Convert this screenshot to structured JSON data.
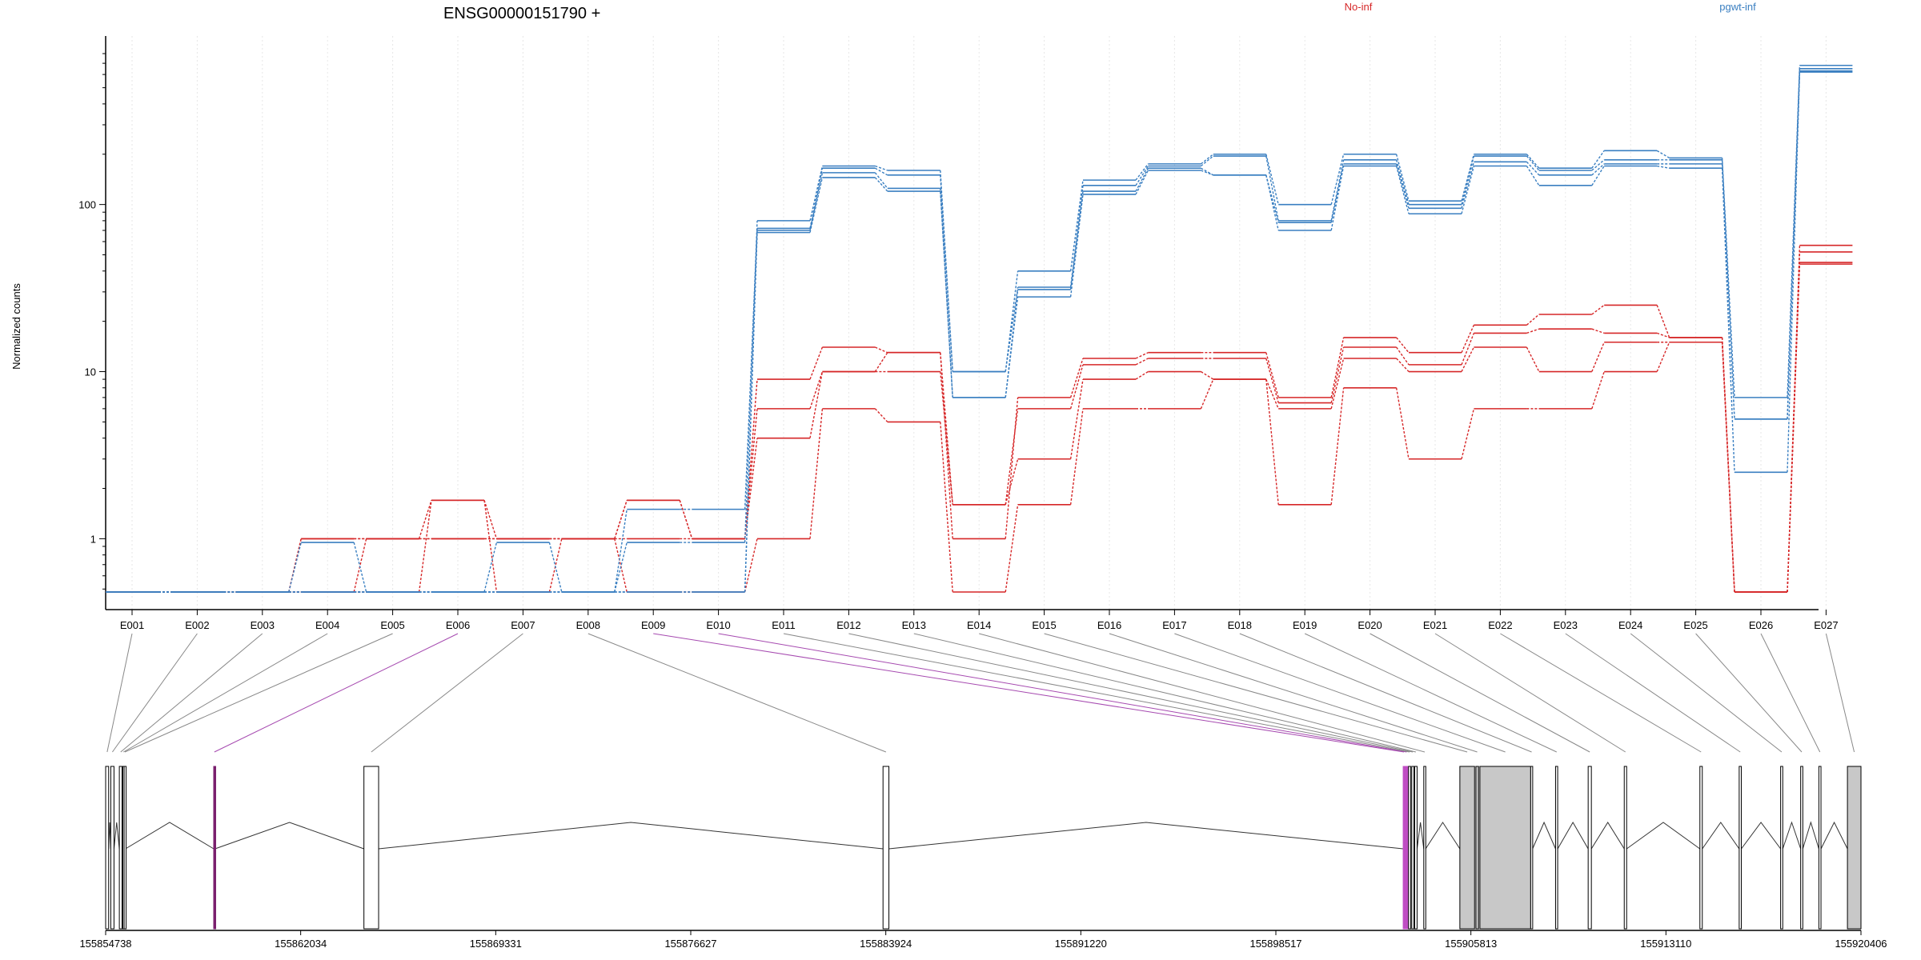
{
  "chart_data": {
    "type": "line",
    "title": "ENSG00000151790 +",
    "ylabel": "Normalized counts",
    "xlabel": "",
    "yscale": "log",
    "ylim": [
      0.48,
      800
    ],
    "yticks": [
      1,
      10,
      100
    ],
    "yticklabels": [
      "1",
      "10",
      "100"
    ],
    "grid": true,
    "legend_placement": "top",
    "legend": [
      {
        "name": "No-inf",
        "color": "#d62728"
      },
      {
        "name": "pgwt-inf",
        "color": "#3a7fc1"
      }
    ],
    "categories": [
      "E001",
      "E002",
      "E003",
      "E004",
      "E005",
      "E006",
      "E007",
      "E008",
      "E009",
      "E010",
      "E011",
      "E012",
      "E013",
      "E014",
      "E015",
      "E016",
      "E017",
      "E018",
      "E019",
      "E020",
      "E021",
      "E022",
      "E023",
      "E024",
      "E025",
      "E026",
      "E027"
    ],
    "series": [
      {
        "group": "No-inf",
        "color": "#d62728",
        "values": [
          0.48,
          0.48,
          0.48,
          1.0,
          1.0,
          1.0,
          1.0,
          1.0,
          1.0,
          1.0,
          9.0,
          14.0,
          13.0,
          1.0,
          7.0,
          12.0,
          13.0,
          13.0,
          7.0,
          16.0,
          13.0,
          19.0,
          22.0,
          25.0,
          16.0,
          0.48,
          57
        ]
      },
      {
        "group": "No-inf",
        "color": "#d62728",
        "values": [
          0.48,
          0.48,
          0.48,
          1.0,
          1.0,
          1.0,
          1.0,
          1.0,
          1.7,
          1.0,
          6.0,
          10.0,
          13.0,
          1.6,
          6.0,
          11.0,
          12.0,
          12.0,
          6.5,
          14.0,
          11.0,
          17.0,
          18.0,
          17.0,
          16.0,
          0.48,
          52
        ]
      },
      {
        "group": "No-inf",
        "color": "#d62728",
        "values": [
          0.48,
          0.48,
          0.48,
          0.48,
          1.0,
          1.7,
          1.0,
          1.0,
          1.7,
          1.0,
          4.0,
          10.0,
          10.0,
          1.6,
          3.0,
          9.0,
          10.0,
          9.0,
          6.0,
          12.0,
          10.0,
          14.0,
          10.0,
          15.0,
          15.0,
          0.48,
          45
        ]
      },
      {
        "group": "No-inf",
        "color": "#d62728",
        "values": [
          0.48,
          0.48,
          0.48,
          0.48,
          0.48,
          1.7,
          0.48,
          1.0,
          0.48,
          0.48,
          1.0,
          6.0,
          5.0,
          0.48,
          1.6,
          6.0,
          6.0,
          9.0,
          1.6,
          8.0,
          3.0,
          6.0,
          6.0,
          10.0,
          15.0,
          0.48,
          44
        ]
      },
      {
        "group": "pgwt-inf",
        "color": "#3a7fc1",
        "values": [
          0.48,
          0.48,
          0.48,
          0.95,
          0.48,
          0.48,
          0.95,
          0.48,
          0.95,
          0.95,
          80,
          170,
          160,
          10.0,
          40,
          140,
          175,
          200,
          100,
          200,
          105,
          200,
          165,
          210,
          190,
          7.0,
          680
        ]
      },
      {
        "group": "pgwt-inf",
        "color": "#3a7fc1",
        "values": [
          0.48,
          0.48,
          0.48,
          0.48,
          0.48,
          0.48,
          0.48,
          0.48,
          1.5,
          1.5,
          72,
          165,
          150,
          10.0,
          32,
          130,
          170,
          195,
          80,
          185,
          100,
          195,
          160,
          185,
          185,
          5.2,
          650
        ]
      },
      {
        "group": "pgwt-inf",
        "color": "#3a7fc1",
        "values": [
          0.48,
          0.48,
          0.48,
          0.48,
          0.48,
          0.48,
          0.48,
          0.48,
          0.48,
          0.48,
          70,
          155,
          125,
          7.0,
          31,
          120,
          165,
          150,
          78,
          175,
          95,
          180,
          150,
          175,
          175,
          5.2,
          630
        ]
      },
      {
        "group": "pgwt-inf",
        "color": "#3a7fc1",
        "values": [
          0.48,
          0.48,
          0.48,
          0.48,
          0.48,
          0.48,
          0.48,
          0.48,
          0.48,
          0.48,
          68,
          145,
          120,
          7.0,
          28,
          115,
          160,
          150,
          70,
          170,
          88,
          170,
          130,
          170,
          165,
          2.5,
          620
        ]
      }
    ],
    "genomic_axis": {
      "ticks": [
        155854738,
        155862034,
        155869331,
        155876627,
        155883924,
        155891220,
        155898517,
        155905813,
        155913110,
        155920406
      ]
    },
    "exons": [
      {
        "id": "E001",
        "start": 155854738,
        "end": 155854850,
        "fill": "#ffffff"
      },
      {
        "id": "E002",
        "start": 155854930,
        "end": 155855050,
        "fill": "#ffffff"
      },
      {
        "id": "E003",
        "start": 155855250,
        "end": 155855350,
        "fill": "#ffffff"
      },
      {
        "id": "E004",
        "start": 155855380,
        "end": 155855430,
        "fill": "#ffffff"
      },
      {
        "id": "E005",
        "start": 155855430,
        "end": 155855480,
        "fill": "#ffffff"
      },
      {
        "id": "E006",
        "start": 155858780,
        "end": 155858830,
        "fill": "#7a1f6e",
        "highlight": true
      },
      {
        "id": "E007",
        "start": 155864400,
        "end": 155864950,
        "fill": "#ffffff"
      },
      {
        "id": "E008",
        "start": 155883820,
        "end": 155884040,
        "fill": "#ffffff"
      },
      {
        "id": "E009",
        "start": 155903280,
        "end": 155903340,
        "fill": "#c04ec4",
        "highlight": true
      },
      {
        "id": "E010",
        "start": 155903380,
        "end": 155903440,
        "fill": "#c04ec4",
        "highlight": true
      },
      {
        "id": "E011",
        "start": 155903480,
        "end": 155903560,
        "fill": "#ffffff"
      },
      {
        "id": "E012",
        "start": 155903600,
        "end": 155903680,
        "fill": "#ffffff"
      },
      {
        "id": "E013",
        "start": 155903710,
        "end": 155903800,
        "fill": "#ffffff"
      },
      {
        "id": "E014",
        "start": 155904050,
        "end": 155904120,
        "fill": "#ffffff"
      },
      {
        "id": "E015",
        "start": 155905400,
        "end": 155905950,
        "fill": "#c8c8c8"
      },
      {
        "id": "E016",
        "start": 155906000,
        "end": 155906100,
        "fill": "#c8c8c8"
      },
      {
        "id": "E017",
        "start": 155906150,
        "end": 155908050,
        "fill": "#c8c8c8"
      },
      {
        "id": "E018",
        "start": 155908050,
        "end": 155908120,
        "fill": "#ffffff"
      },
      {
        "id": "E019",
        "start": 155908980,
        "end": 155909060,
        "fill": "#ffffff"
      },
      {
        "id": "E020",
        "start": 155910200,
        "end": 155910320,
        "fill": "#ffffff"
      },
      {
        "id": "E021",
        "start": 155911550,
        "end": 155911640,
        "fill": "#ffffff"
      },
      {
        "id": "E022",
        "start": 155914380,
        "end": 155914470,
        "fill": "#ffffff"
      },
      {
        "id": "E023",
        "start": 155915850,
        "end": 155915930,
        "fill": "#ffffff"
      },
      {
        "id": "E024",
        "start": 155917400,
        "end": 155917480,
        "fill": "#ffffff"
      },
      {
        "id": "E025",
        "start": 155918150,
        "end": 155918230,
        "fill": "#ffffff"
      },
      {
        "id": "E026",
        "start": 155918830,
        "end": 155918910,
        "fill": "#ffffff"
      },
      {
        "id": "E027",
        "start": 155919900,
        "end": 155920406,
        "fill": "#c8c8c8"
      }
    ]
  }
}
